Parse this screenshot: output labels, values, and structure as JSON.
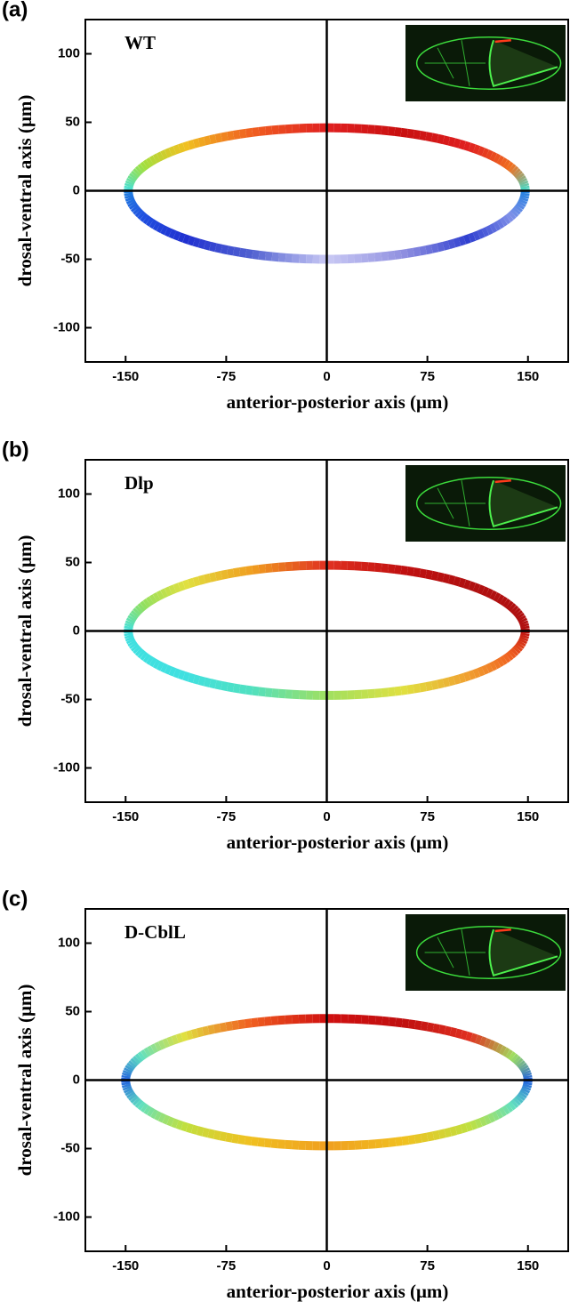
{
  "chart_data": [
    {
      "type": "ring",
      "panel": "(a)",
      "label": "WT",
      "xlabel": "anterior-posterior axis  (μm)",
      "ylabel": "drosal-ventral axis  (μm)",
      "xlim": [
        -180,
        180
      ],
      "ylim": [
        -125,
        125
      ],
      "xticks": [
        -150,
        -75,
        0,
        75,
        150
      ],
      "yticks": [
        -100,
        -50,
        0,
        50,
        100
      ],
      "ring": {
        "rx": 148,
        "ry_upper": 46,
        "ry_lower": 50,
        "upper_colors": [
          "#40e0e0",
          "#a0e040",
          "#f0c020",
          "#f06020",
          "#e02020",
          "#c81010",
          "#e02020",
          "#f07020",
          "#40e0d0"
        ],
        "lower_colors": [
          "#2080e0",
          "#2050e0",
          "#2030d0",
          "#5060d0",
          "#c8c8f4",
          "#9090e0",
          "#3040d0",
          "#8090e8",
          "#2080e0"
        ]
      }
    },
    {
      "type": "ring",
      "panel": "(b)",
      "label": "Dlp",
      "xlabel": "anterior-posterior axis  (μm)",
      "ylabel": "drosal-ventral axis  (μm)",
      "xlim": [
        -180,
        180
      ],
      "ylim": [
        -125,
        125
      ],
      "xticks": [
        -150,
        -75,
        0,
        75,
        150
      ],
      "yticks": [
        -100,
        -50,
        0,
        50,
        100
      ],
      "ring": {
        "rx": 148,
        "ry_upper": 48,
        "ry_lower": 47,
        "upper_colors": [
          "#40e0e0",
          "#90e060",
          "#e0e040",
          "#f0a020",
          "#e03020",
          "#c01010",
          "#b01010",
          "#b01010",
          "#b01010"
        ],
        "lower_colors": [
          "#40e0e0",
          "#40e0e0",
          "#40e0e0",
          "#50e0c0",
          "#a0e060",
          "#e0e040",
          "#f0a030",
          "#f06020",
          "#c01010"
        ]
      }
    },
    {
      "type": "ring",
      "panel": "(c)",
      "label": "D-CblL",
      "xlabel": "anterior-posterior axis  (μm)",
      "ylabel": "drosal-ventral axis  (μm)",
      "xlim": [
        -180,
        180
      ],
      "ylim": [
        -125,
        125
      ],
      "xticks": [
        -150,
        -75,
        0,
        75,
        150
      ],
      "yticks": [
        -100,
        -50,
        0,
        50,
        100
      ],
      "ring": {
        "rx": 150,
        "ry_upper": 45,
        "ry_lower": 48,
        "upper_colors": [
          "#2060e0",
          "#60e0c0",
          "#e0e040",
          "#f06020",
          "#d01010",
          "#c01010",
          "#e03020",
          "#a0e060",
          "#2060e0"
        ],
        "lower_colors": [
          "#2060e0",
          "#60e0c0",
          "#c0e040",
          "#f0c020",
          "#f0a020",
          "#f0c020",
          "#c0e040",
          "#60e0c0",
          "#2060e0"
        ]
      }
    }
  ]
}
